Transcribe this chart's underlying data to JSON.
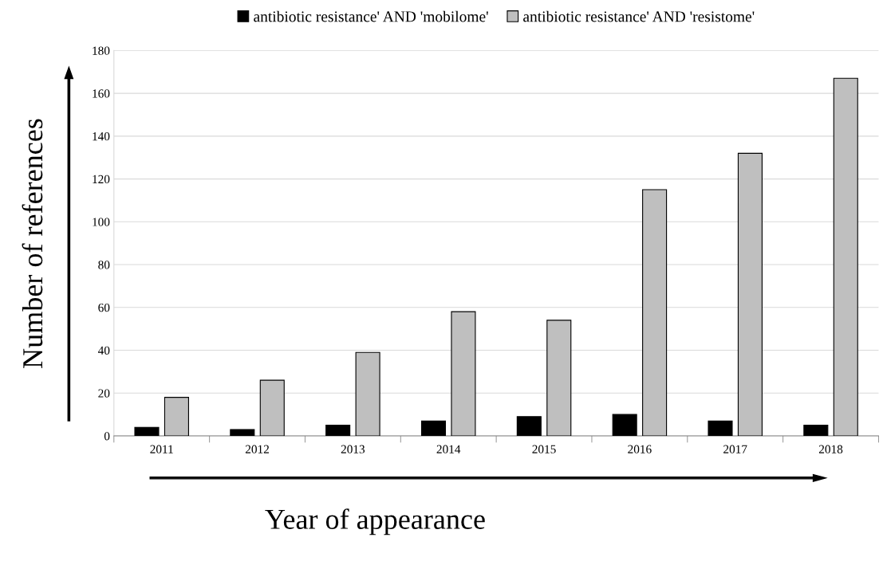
{
  "chart_data": {
    "type": "bar",
    "xlabel": "Year of appearance",
    "ylabel": "Number of references",
    "categories": [
      "2011",
      "2012",
      "2013",
      "2014",
      "2015",
      "2016",
      "2017",
      "2018"
    ],
    "series": [
      {
        "name": "antibiotic resistance' AND 'mobilome'",
        "color": "#000000",
        "values": [
          4,
          3,
          5,
          7,
          9,
          10,
          7,
          5
        ]
      },
      {
        "name": "antibiotic resistance' AND 'resistome'",
        "color": "#bfbfbf",
        "values": [
          18,
          26,
          39,
          58,
          54,
          115,
          132,
          167
        ]
      }
    ],
    "ylim": [
      0,
      180
    ],
    "yticks": [
      0,
      20,
      40,
      60,
      80,
      100,
      120,
      140,
      160,
      180
    ],
    "grid": "y",
    "legend": "top"
  }
}
